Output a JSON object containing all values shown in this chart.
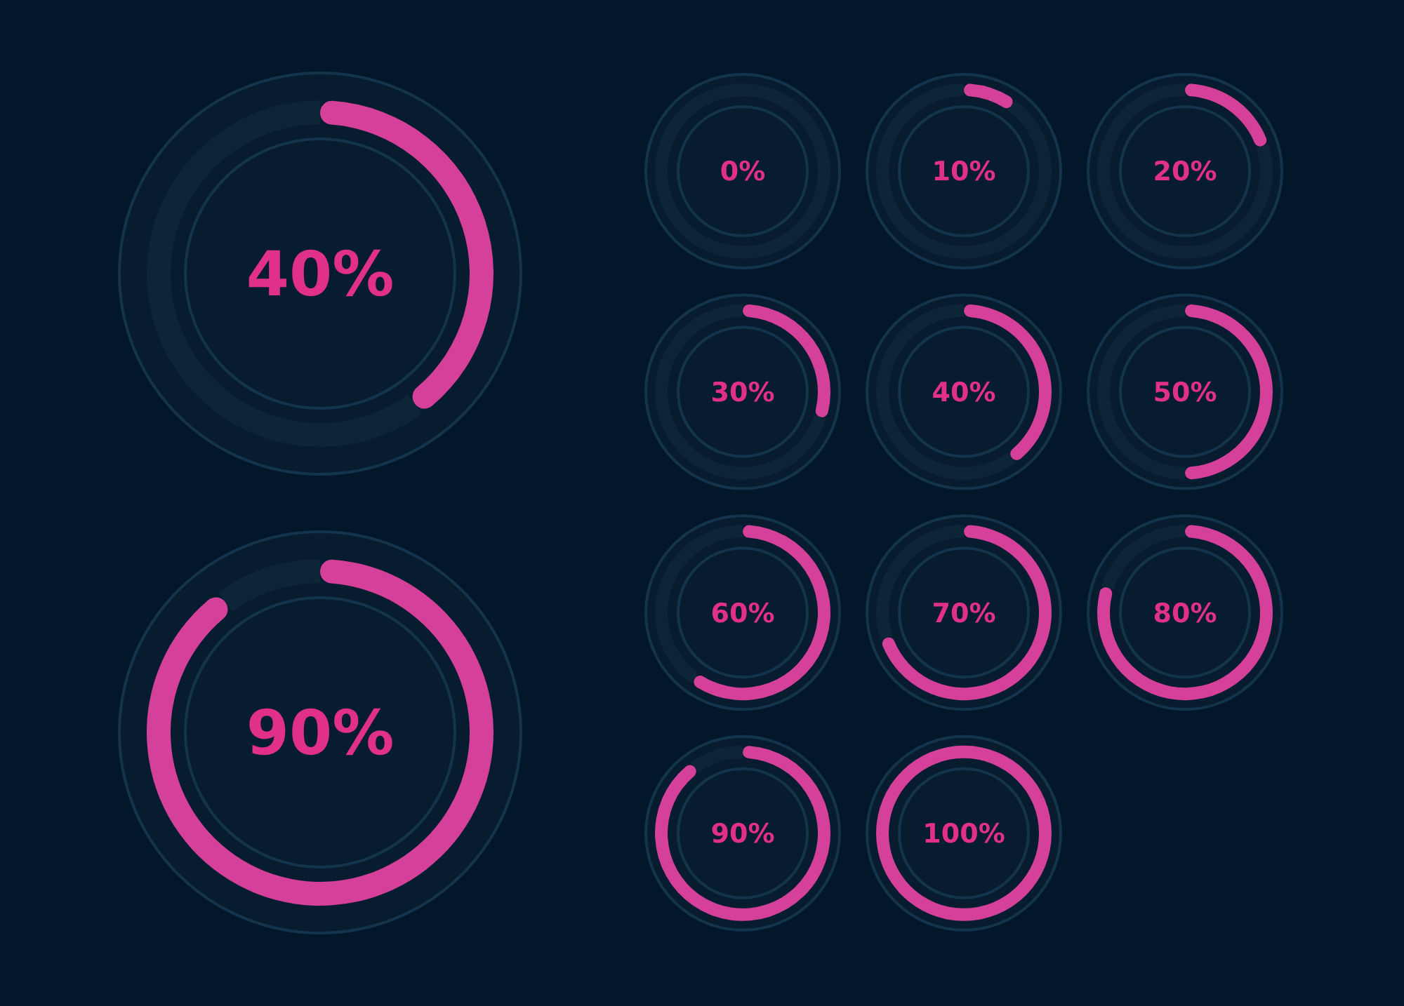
{
  "chart_data": [
    {
      "type": "donut",
      "title": "40%",
      "categories": [
        null,
        null
      ],
      "values": [
        40,
        60
      ],
      "colors": [
        "#d5409a",
        "#0c2638"
      ]
    },
    {
      "type": "donut",
      "title": "90%",
      "categories": [
        null,
        null
      ],
      "values": [
        90,
        10
      ],
      "colors": [
        "#d5409a",
        "#0c2638"
      ]
    },
    {
      "type": "donut",
      "title": "0%",
      "categories": [
        null,
        null
      ],
      "values": [
        0,
        100
      ],
      "colors": [
        "#d5409a",
        "#0c2638"
      ]
    },
    {
      "type": "donut",
      "title": "10%",
      "categories": [
        null,
        null
      ],
      "values": [
        10,
        90
      ],
      "colors": [
        "#d5409a",
        "#0c2638"
      ]
    },
    {
      "type": "donut",
      "title": "20%",
      "categories": [
        null,
        null
      ],
      "values": [
        20,
        80
      ],
      "colors": [
        "#d5409a",
        "#0c2638"
      ]
    },
    {
      "type": "donut",
      "title": "30%",
      "categories": [
        null,
        null
      ],
      "values": [
        30,
        70
      ],
      "colors": [
        "#d5409a",
        "#0c2638"
      ]
    },
    {
      "type": "donut",
      "title": "40%",
      "categories": [
        null,
        null
      ],
      "values": [
        40,
        60
      ],
      "colors": [
        "#d5409a",
        "#0c2638"
      ]
    },
    {
      "type": "donut",
      "title": "50%",
      "categories": [
        null,
        null
      ],
      "values": [
        50,
        50
      ],
      "colors": [
        "#d5409a",
        "#0c2638"
      ]
    },
    {
      "type": "donut",
      "title": "60%",
      "categories": [
        null,
        null
      ],
      "values": [
        60,
        40
      ],
      "colors": [
        "#d5409a",
        "#0c2638"
      ]
    },
    {
      "type": "donut",
      "title": "70%",
      "categories": [
        null,
        null
      ],
      "values": [
        70,
        30
      ],
      "colors": [
        "#d5409a",
        "#0c2638"
      ]
    },
    {
      "type": "donut",
      "title": "80%",
      "categories": [
        null,
        null
      ],
      "values": [
        80,
        20
      ],
      "colors": [
        "#d5409a",
        "#0c2638"
      ]
    },
    {
      "type": "donut",
      "title": "90%",
      "categories": [
        null,
        null
      ],
      "values": [
        90,
        10
      ],
      "colors": [
        "#d5409a",
        "#0c2638"
      ]
    },
    {
      "type": "donut",
      "title": "100%",
      "categories": [
        null,
        null
      ],
      "values": [
        100,
        0
      ],
      "colors": [
        "#d5409a",
        "#0c2638"
      ]
    }
  ]
}
